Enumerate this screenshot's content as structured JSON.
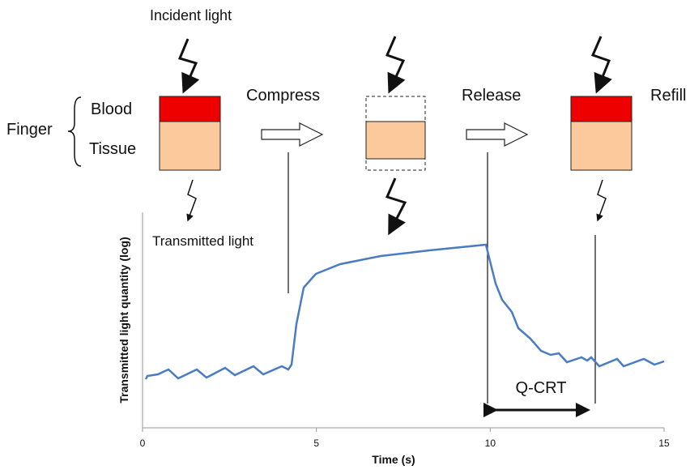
{
  "labels": {
    "incident": "Incident light",
    "finger": "Finger",
    "blood": "Blood",
    "tissue": "Tissue",
    "compress": "Compress",
    "release": "Release",
    "refill": "Refill",
    "transmitted": "Transmitted light",
    "qcrt": "Q-CRT"
  },
  "chart_data": {
    "type": "line",
    "x_label": "Time (s)",
    "y_label": "Transmitted light quantity (log)",
    "xlim": [
      0,
      15
    ],
    "xticks": [
      0,
      5,
      10,
      15
    ]
  }
}
